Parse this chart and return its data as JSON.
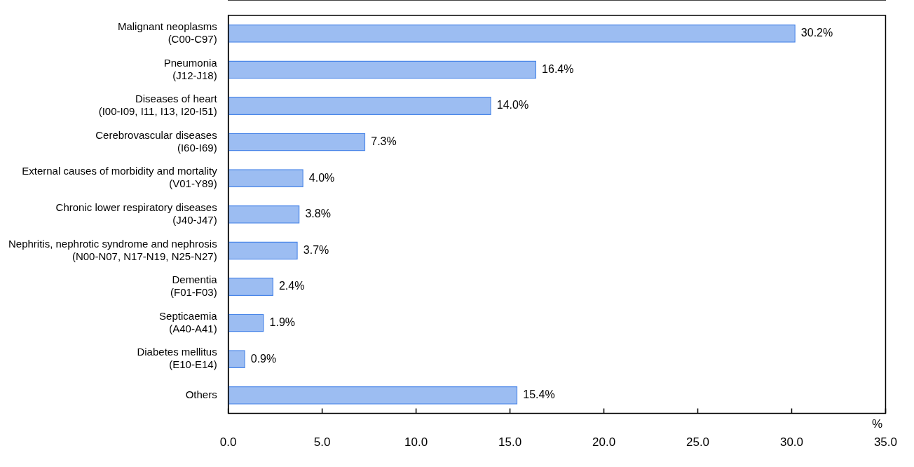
{
  "chart_data": {
    "type": "bar",
    "orientation": "horizontal",
    "xlabel": "%",
    "categories": [
      "Malignant neoplasms\n(C00-C97)",
      "Pneumonia\n(J12-J18)",
      "Diseases of heart\n(I00-I09, I11, I13, I20-I51)",
      "Cerebrovascular diseases\n(I60-I69)",
      "External causes of morbidity and mortality\n(V01-Y89)",
      "Chronic lower respiratory diseases\n(J40-J47)",
      "Nephritis, nephrotic syndrome and nephrosis\n(N00-N07, N17-N19, N25-N27)",
      "Dementia\n(F01-F03)",
      "Septicaemia\n(A40-A41)",
      "Diabetes mellitus\n(E10-E14)",
      "Others"
    ],
    "values": [
      30.2,
      16.4,
      14.0,
      7.3,
      4.0,
      3.8,
      3.7,
      2.4,
      1.9,
      0.9,
      15.4
    ],
    "value_labels": [
      "30.2%",
      "16.4%",
      "14.0%",
      "7.3%",
      "4.0%",
      "3.8%",
      "3.7%",
      "2.4%",
      "1.9%",
      "0.9%",
      "15.4%"
    ],
    "color": "#4a86e8",
    "xlim": [
      0,
      35
    ],
    "xticks": [
      {
        "value": 0,
        "label": "0.0"
      },
      {
        "value": 5,
        "label": "5.0"
      },
      {
        "value": 10,
        "label": "10.0"
      },
      {
        "value": 15,
        "label": "15.0"
      },
      {
        "value": 20,
        "label": "20.0"
      },
      {
        "value": 25,
        "label": "25.0"
      },
      {
        "value": 30,
        "label": "30.0"
      },
      {
        "value": 35,
        "label": "35.0"
      }
    ],
    "grid": false,
    "legend": false
  }
}
